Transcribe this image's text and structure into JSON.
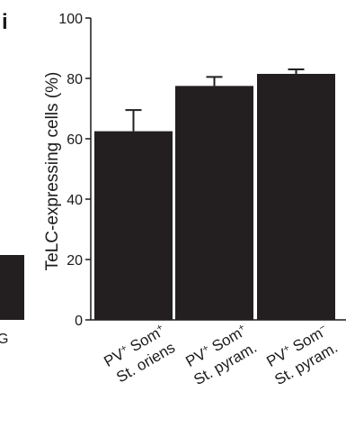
{
  "panel_letter": "i",
  "chart_data": {
    "type": "bar",
    "ylabel": "TeLC-expressing cells (%)",
    "ylim": [
      0,
      100
    ],
    "yticks": [
      0,
      20,
      40,
      60,
      80,
      100
    ],
    "categories": [
      {
        "line1": "PV",
        "sup1": "+",
        "line1b": " Som",
        "sup1b": "+",
        "line2": "St. oriens"
      },
      {
        "line1": "PV",
        "sup1": "+",
        "line1b": " Som",
        "sup1b": "+",
        "line2": "St. pyram."
      },
      {
        "line1": "PV",
        "sup1": "+",
        "line1b": " Som",
        "sup1b": "−",
        "line2": "St. pyram."
      }
    ],
    "values": [
      62.5,
      77.5,
      81.5
    ],
    "errors": [
      7,
      3,
      1.5
    ],
    "bar_color": "#231f20",
    "grid": false
  },
  "fragment": {
    "partial_bar_color": "#231f20",
    "partial_letter": "G"
  }
}
